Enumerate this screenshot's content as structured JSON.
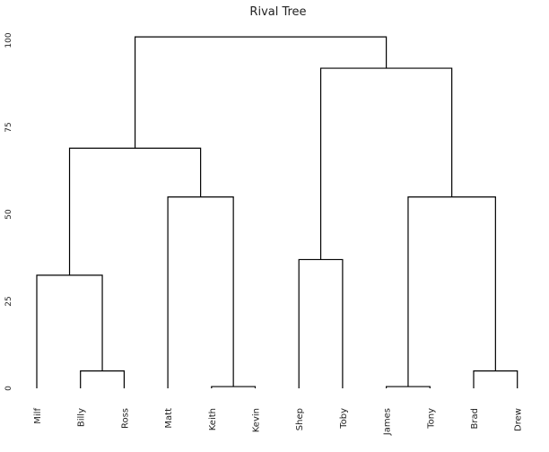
{
  "chart_data": {
    "type": "dendrogram",
    "title": "Rival Tree",
    "xlabel": "",
    "ylabel": "",
    "ylim": [
      0,
      100
    ],
    "yticks": [
      0,
      25,
      50,
      75,
      100
    ],
    "grid": false,
    "leaves": [
      "Milf",
      "Billy",
      "Ross",
      "Matt",
      "Keith",
      "Kevin",
      "Shep",
      "Toby",
      "James",
      "Tony",
      "Brad",
      "Drew"
    ],
    "merges": [
      {
        "a": "Billy",
        "b": "Ross",
        "height": 5
      },
      {
        "a": "Keith",
        "b": "Kevin",
        "height": 0.5
      },
      {
        "a": "James",
        "b": "Tony",
        "height": 0.5
      },
      {
        "a": "Brad",
        "b": "Drew",
        "height": 5
      },
      {
        "a": "Milf",
        "b": "Billy+Ross",
        "height": 32.5
      },
      {
        "a": "Shep",
        "b": "Toby",
        "height": 37
      },
      {
        "a": "Matt",
        "b": "Keith+Kevin",
        "height": 55
      },
      {
        "a": "James+Tony",
        "b": "Brad+Drew",
        "height": 55
      },
      {
        "a": "Milf+Billy+Ross",
        "b": "Matt+Keith+Kevin",
        "height": 69
      },
      {
        "a": "Shep+Toby",
        "b": "James+Tony+Brad+Drew",
        "height": 92
      },
      {
        "a": "Milf+Billy+Ross+Matt+Keith+Kevin",
        "b": "Shep+Toby+James+Tony+Brad+Drew",
        "height": 101
      }
    ],
    "colors": {
      "lines": "#000000",
      "text": "#222222"
    }
  }
}
